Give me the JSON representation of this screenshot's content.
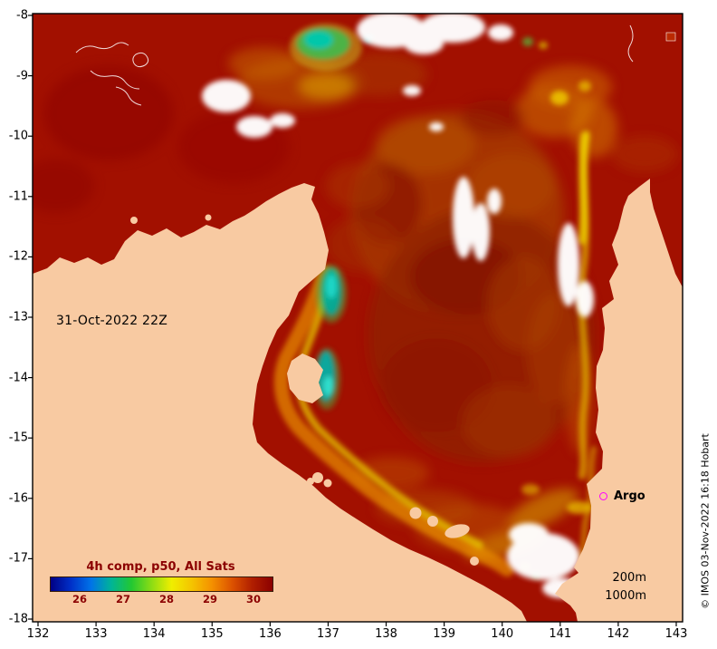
{
  "map": {
    "date_label": "31-Oct-2022 22Z",
    "argo_label": "Argo",
    "depth_200": "200m",
    "depth_1000": "1000m",
    "credit": "© IMOS 03-Nov-2022 16:18 Hobart"
  },
  "axes": {
    "x_ticks": [
      "132",
      "133",
      "134",
      "135",
      "136",
      "137",
      "138",
      "139",
      "140",
      "141",
      "142",
      "143"
    ],
    "y_ticks": [
      "-8",
      "-9",
      "-10",
      "-11",
      "-12",
      "-13",
      "-14",
      "-15",
      "-16",
      "-17",
      "-18"
    ]
  },
  "colorbar": {
    "title": "4h comp, p50, All Sats",
    "ticks": [
      "26",
      "27",
      "28",
      "29",
      "30"
    ],
    "gradient": [
      "#000085",
      "#0030c8",
      "#0073e8",
      "#00b497",
      "#22c832",
      "#8cdc14",
      "#f0ee00",
      "#f4c400",
      "#f49000",
      "#dc5200",
      "#b01e00",
      "#8b0000"
    ]
  },
  "colors": {
    "land": "#f8caa2",
    "sea": "#a21000",
    "no_data": "#ffffff",
    "argo": "#ff00ff",
    "frame": "#000000",
    "axis_text": "#000000",
    "cbar_text": "#8b0000"
  },
  "chart_data": {
    "type": "heatmap",
    "title": "4h comp, p50, All Sats",
    "datetime_label": "31-Oct-2022 22Z",
    "x_ticks": [
      132,
      133,
      134,
      135,
      136,
      137,
      138,
      139,
      140,
      141,
      142,
      143
    ],
    "y_ticks": [
      -8,
      -9,
      -10,
      -11,
      -12,
      -13,
      -14,
      -15,
      -16,
      -17,
      -18
    ],
    "colorbar_ticks": [
      26,
      27,
      28,
      29,
      30
    ],
    "legend_position": "bottom-left",
    "annotations": [
      "Argo",
      "200m",
      "1000m",
      "© IMOS 03-Nov-2022 16:18 Hobart"
    ]
  }
}
